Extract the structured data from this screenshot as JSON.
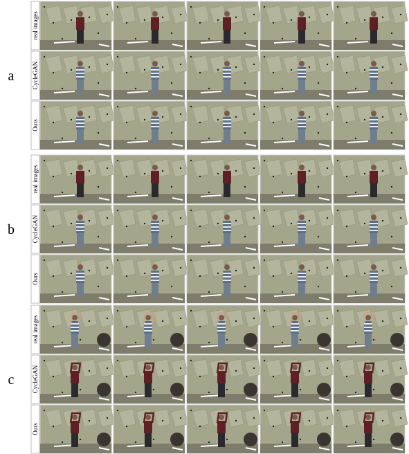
{
  "groups": [
    {
      "label": "a",
      "rows": [
        {
          "label": "real images"
        },
        {
          "label": "CycleGAN"
        },
        {
          "label": "Ours"
        }
      ]
    },
    {
      "label": "b",
      "rows": [
        {
          "label": "real images"
        },
        {
          "label": "CycleGAN"
        },
        {
          "label": "Ours"
        }
      ]
    },
    {
      "label": "c",
      "rows": [
        {
          "label": "real images"
        },
        {
          "label": "CycleGAN"
        },
        {
          "label": "Ours"
        }
      ]
    }
  ]
}
